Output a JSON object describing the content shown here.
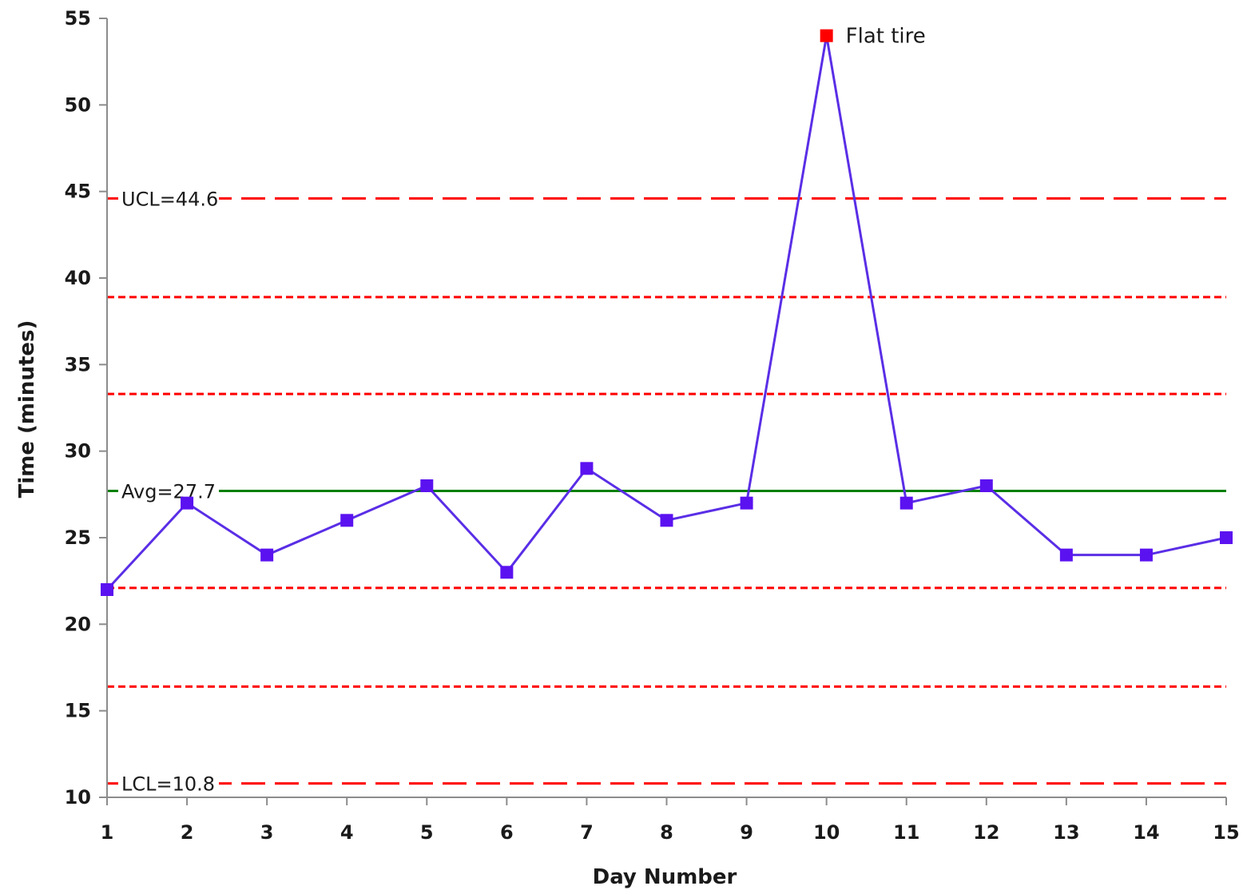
{
  "chart_data": {
    "type": "line",
    "title": "",
    "xlabel": "Day Number",
    "ylabel": "Time (minutes)",
    "xlim": [
      1,
      15
    ],
    "ylim": [
      10,
      55
    ],
    "x_ticks": [
      1,
      2,
      3,
      4,
      5,
      6,
      7,
      8,
      9,
      10,
      11,
      12,
      13,
      14,
      15
    ],
    "y_ticks": [
      10,
      15,
      20,
      25,
      30,
      35,
      40,
      45,
      50,
      55
    ],
    "grid": false,
    "legend": "none",
    "series": [
      {
        "x": [
          1,
          2,
          3,
          4,
          5,
          6,
          7,
          8,
          9,
          10,
          11,
          12,
          13,
          14,
          15
        ],
        "values": [
          22,
          27,
          24,
          26,
          28,
          23,
          29,
          26,
          27,
          54,
          27,
          28,
          24,
          24,
          25
        ],
        "color": "#5a2ee6",
        "marker_color": "#5b12f0",
        "highlight_color": "#ff0000",
        "highlight_x": [
          10
        ]
      }
    ],
    "reference_lines": [
      {
        "value": 44.6,
        "label": "UCL=44.6",
        "style": "long-dash",
        "color": "#ff0000"
      },
      {
        "value": 38.9,
        "label": "",
        "style": "short-dash",
        "color": "#ff0000"
      },
      {
        "value": 33.3,
        "label": "",
        "style": "short-dash",
        "color": "#ff0000"
      },
      {
        "value": 27.7,
        "label": "Avg=27.7",
        "style": "solid",
        "color": "#008000"
      },
      {
        "value": 22.1,
        "label": "",
        "style": "short-dash",
        "color": "#ff0000"
      },
      {
        "value": 16.4,
        "label": "",
        "style": "short-dash",
        "color": "#ff0000"
      },
      {
        "value": 10.8,
        "label": "LCL=10.8",
        "style": "long-dash",
        "color": "#ff0000"
      }
    ],
    "annotations": [
      {
        "x": 10,
        "y": 54,
        "text": "Flat tire"
      }
    ]
  }
}
